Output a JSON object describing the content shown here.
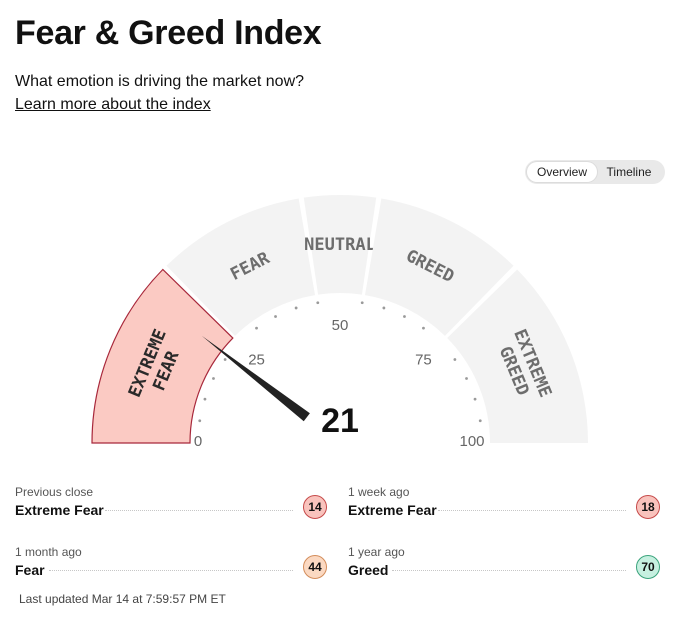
{
  "page": {
    "title": "Fear & Greed Index",
    "subtitle": "What emotion is driving the market now?",
    "learn_more": "Learn more about the index"
  },
  "toggle": {
    "overview": "Overview",
    "timeline": "Timeline",
    "active": "Overview"
  },
  "gauge": {
    "value": 21,
    "value_text": "21",
    "segments": [
      {
        "id": "extreme-fear",
        "lines": [
          "EXTREME",
          "FEAR"
        ],
        "from": 0,
        "to": 25,
        "active": true
      },
      {
        "id": "fear",
        "lines": [
          "FEAR"
        ],
        "from": 25,
        "to": 45,
        "active": false
      },
      {
        "id": "neutral",
        "lines": [
          "NEUTRAL"
        ],
        "from": 45,
        "to": 55,
        "active": false
      },
      {
        "id": "greed",
        "lines": [
          "GREED"
        ],
        "from": 55,
        "to": 75,
        "active": false
      },
      {
        "id": "extreme-greed",
        "lines": [
          "EXTREME",
          "GREED"
        ],
        "from": 75,
        "to": 100,
        "active": false
      }
    ],
    "ticks": [
      "0",
      "25",
      "50",
      "75",
      "100"
    ],
    "colors": {
      "active_fill": "#fbcac3",
      "active_stroke": "#a8283b",
      "inactive_fill": "#f3f3f3",
      "text": "#6d6d6d",
      "active_text": "#2a2a2a",
      "needle": "#222222"
    }
  },
  "stats": {
    "previous_close": {
      "label": "Previous close",
      "value": "Extreme Fear",
      "score": "14"
    },
    "one_week": {
      "label": "1 week ago",
      "value": "Extreme Fear",
      "score": "18"
    },
    "one_month": {
      "label": "1 month ago",
      "value": "Fear",
      "score": "44"
    },
    "one_year": {
      "label": "1 year ago",
      "value": "Greed",
      "score": "70"
    }
  },
  "last_updated": "Last updated Mar 14 at 7:59:57 PM ET"
}
